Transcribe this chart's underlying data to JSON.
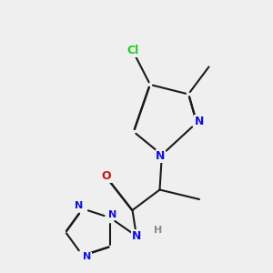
{
  "bg": "#efefef",
  "bond_color": "#1a1a1a",
  "lw": 1.5,
  "dbo": 0.012,
  "colors": {
    "N": "#1010dd",
    "O": "#cc1010",
    "Cl": "#22cc22",
    "H": "#888888"
  },
  "fs_big": 9,
  "fs_small": 8,
  "xlim": [
    0,
    10
  ],
  "ylim": [
    0,
    10
  ]
}
